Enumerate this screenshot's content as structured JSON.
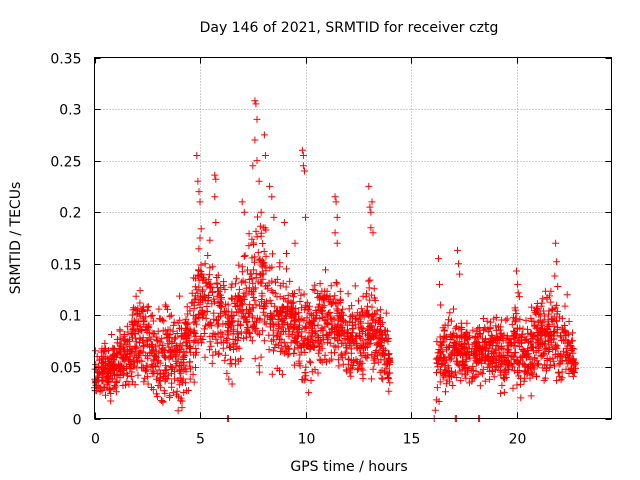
{
  "chart_data": {
    "type": "scatter",
    "title": "Day 146 of 2021, SRMTID for receiver cztg",
    "xlabel": "GPS time / hours",
    "ylabel": "SRMTID / TECUs",
    "xlim": [
      0,
      24.5
    ],
    "ylim": [
      0,
      0.35
    ],
    "x_ticks": [
      0,
      5,
      10,
      15,
      20
    ],
    "y_ticks": [
      0,
      0.05,
      0.1,
      0.15,
      0.2,
      0.25,
      0.3,
      0.35
    ],
    "x_tick_labels": [
      "0",
      "5",
      "10",
      "15",
      "20"
    ],
    "y_tick_labels": [
      "0",
      "0.05",
      "0.1",
      "0.15",
      "0.2",
      "0.25",
      "0.3",
      "0.35"
    ],
    "grid": true,
    "marker": "+",
    "series": [
      {
        "name": "SRMTID",
        "color": "#ff0000",
        "envelope": {
          "note": "approximate density envelope of the scatter: [hour, median, spread]",
          "segments": [
            [
              [
                0.0,
                0.04,
                0.015
              ],
              [
                0.5,
                0.048,
                0.018
              ],
              [
                1.0,
                0.055,
                0.02
              ],
              [
                1.5,
                0.06,
                0.02
              ],
              [
                2.0,
                0.08,
                0.03
              ],
              [
                2.5,
                0.07,
                0.03
              ],
              [
                3.0,
                0.06,
                0.028
              ],
              [
                3.5,
                0.065,
                0.03
              ],
              [
                4.0,
                0.06,
                0.03
              ],
              [
                4.5,
                0.07,
                0.03
              ],
              [
                5.0,
                0.12,
                0.04
              ],
              [
                5.5,
                0.11,
                0.035
              ],
              [
                6.0,
                0.095,
                0.03
              ],
              [
                6.5,
                0.085,
                0.03
              ],
              [
                7.0,
                0.11,
                0.035
              ],
              [
                7.5,
                0.115,
                0.045
              ],
              [
                8.0,
                0.13,
                0.045
              ],
              [
                8.5,
                0.1,
                0.035
              ],
              [
                9.0,
                0.095,
                0.03
              ],
              [
                9.5,
                0.085,
                0.03
              ],
              [
                10.0,
                0.08,
                0.03
              ],
              [
                10.5,
                0.085,
                0.03
              ],
              [
                11.0,
                0.1,
                0.035
              ],
              [
                11.5,
                0.09,
                0.03
              ],
              [
                12.0,
                0.08,
                0.03
              ],
              [
                12.5,
                0.075,
                0.03
              ],
              [
                13.0,
                0.095,
                0.035
              ],
              [
                13.5,
                0.075,
                0.025
              ],
              [
                14.0,
                0.06,
                0.02
              ]
            ],
            [
              [
                16.2,
                0.05,
                0.02
              ],
              [
                16.5,
                0.06,
                0.02
              ],
              [
                17.0,
                0.07,
                0.025
              ],
              [
                17.5,
                0.065,
                0.02
              ],
              [
                18.0,
                0.06,
                0.02
              ],
              [
                18.5,
                0.065,
                0.02
              ],
              [
                19.0,
                0.07,
                0.025
              ],
              [
                19.5,
                0.06,
                0.02
              ],
              [
                20.0,
                0.075,
                0.03
              ],
              [
                20.5,
                0.06,
                0.02
              ],
              [
                21.0,
                0.08,
                0.03
              ],
              [
                21.5,
                0.085,
                0.03
              ],
              [
                22.0,
                0.075,
                0.03
              ],
              [
                22.5,
                0.06,
                0.02
              ],
              [
                22.8,
                0.055,
                0.015
              ]
            ]
          ]
        },
        "outliers": [
          [
            4.85,
            0.255
          ],
          [
            4.9,
            0.23
          ],
          [
            4.95,
            0.22
          ],
          [
            5.0,
            0.21
          ],
          [
            5.0,
            0.175
          ],
          [
            5.7,
            0.236
          ],
          [
            5.75,
            0.232
          ],
          [
            5.7,
            0.215
          ],
          [
            5.75,
            0.19
          ],
          [
            7.0,
            0.21
          ],
          [
            7.1,
            0.2
          ],
          [
            7.5,
            0.245
          ],
          [
            7.6,
            0.308
          ],
          [
            7.65,
            0.305
          ],
          [
            7.7,
            0.29
          ],
          [
            7.6,
            0.27
          ],
          [
            7.7,
            0.25
          ],
          [
            7.8,
            0.23
          ],
          [
            7.9,
            0.2
          ],
          [
            8.0,
            0.185
          ],
          [
            8.0,
            0.14
          ],
          [
            8.05,
            0.275
          ],
          [
            8.1,
            0.255
          ],
          [
            8.3,
            0.225
          ],
          [
            8.4,
            0.215
          ],
          [
            8.5,
            0.195
          ],
          [
            9.0,
            0.19
          ],
          [
            9.1,
            0.16
          ],
          [
            9.1,
            0.145
          ],
          [
            9.5,
            0.17
          ],
          [
            9.85,
            0.26
          ],
          [
            9.9,
            0.255
          ],
          [
            9.9,
            0.245
          ],
          [
            9.95,
            0.24
          ],
          [
            10.0,
            0.195
          ],
          [
            11.4,
            0.215
          ],
          [
            11.45,
            0.21
          ],
          [
            11.5,
            0.195
          ],
          [
            11.4,
            0.18
          ],
          [
            11.5,
            0.17
          ],
          [
            13.0,
            0.225
          ],
          [
            13.05,
            0.205
          ],
          [
            13.1,
            0.2
          ],
          [
            13.15,
            0.21
          ],
          [
            13.1,
            0.185
          ],
          [
            13.2,
            0.18
          ],
          [
            16.3,
            0.155
          ],
          [
            16.35,
            0.13
          ],
          [
            16.4,
            0.11
          ],
          [
            17.2,
            0.163
          ],
          [
            17.25,
            0.15
          ],
          [
            17.3,
            0.14
          ],
          [
            20.0,
            0.143
          ],
          [
            20.05,
            0.13
          ],
          [
            21.85,
            0.17
          ],
          [
            21.9,
            0.152
          ],
          [
            21.95,
            0.128
          ],
          [
            22.4,
            0.12
          ],
          [
            20.2,
            0.02
          ],
          [
            16.15,
            0.008
          ],
          [
            16.2,
            0.018
          ],
          [
            16.25,
            0.03
          ]
        ],
        "zero_points": [
          [
            6.3,
            0
          ],
          [
            6.35,
            0
          ],
          [
            17.1,
            0
          ],
          [
            17.15,
            0
          ],
          [
            18.2,
            0
          ],
          [
            18.25,
            0
          ],
          [
            16.1,
            0
          ]
        ]
      }
    ]
  }
}
